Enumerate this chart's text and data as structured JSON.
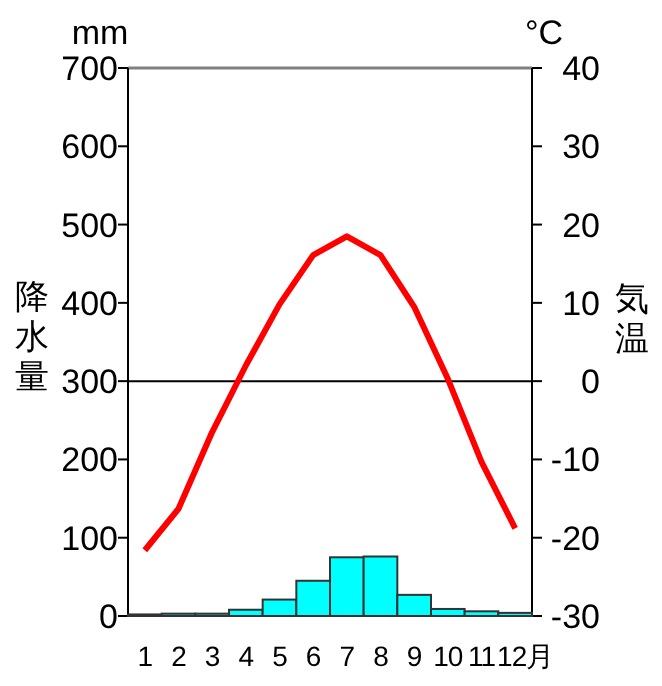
{
  "chart_data": {
    "type": "bar",
    "categories": [
      "1",
      "2",
      "3",
      "4",
      "5",
      "6",
      "7",
      "8",
      "9",
      "10",
      "11",
      "12月"
    ],
    "series": [
      {
        "axis": "y",
        "color": "#00ffff",
        "values": [
          2,
          3,
          3,
          8,
          21,
          45,
          75,
          76,
          27,
          9,
          6,
          4
        ]
      },
      {
        "type": "line",
        "axis": "y2",
        "color": "#ff0000",
        "values": [
          -21.6,
          -16.3,
          -6.5,
          2,
          9.8,
          16.1,
          18.5,
          16.1,
          9.5,
          0.3,
          -10.3,
          -18.8
        ]
      }
    ],
    "ylabel": "降水量",
    "y2label": "気温",
    "annotations": [
      "mm",
      "°C"
    ],
    "ylim": [
      0,
      700
    ],
    "yticks": [
      0,
      100,
      200,
      300,
      400,
      500,
      600,
      700
    ],
    "y2lim": [
      -30,
      40
    ],
    "y2ticks": [
      -30,
      -20,
      -10,
      0,
      10,
      20,
      30,
      40
    ],
    "ref_lines": [
      {
        "axis": "y2",
        "value": 0,
        "color": "#000000"
      }
    ]
  }
}
